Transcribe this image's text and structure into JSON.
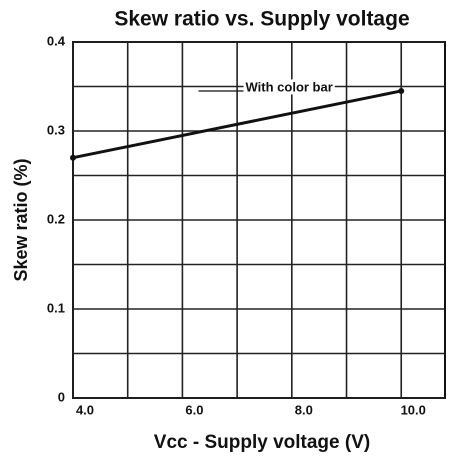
{
  "chart_data": {
    "type": "line",
    "title": "Skew ratio vs. Supply voltage",
    "xlabel": "Vcc - Supply voltage (V)",
    "ylabel": "Skew ratio (%)",
    "x": [
      4,
      10
    ],
    "series": [
      {
        "name": "With color bar",
        "color": "#111111",
        "values": [
          0.27,
          0.345
        ]
      }
    ],
    "xlim": [
      4,
      10.8
    ],
    "xticks": [
      {
        "value": 4,
        "label": "4.0"
      },
      {
        "value": 6,
        "label": "6.0"
      },
      {
        "value": 8,
        "label": "8.0"
      },
      {
        "value": 10,
        "label": "10.0"
      }
    ],
    "xgrid": [
      5,
      7,
      9
    ],
    "ylim": [
      0,
      0.4
    ],
    "yticks": [
      0,
      0.1,
      0.2,
      0.3,
      0.4
    ],
    "ygrid": [
      0.05,
      0.15,
      0.25,
      0.35
    ],
    "grid": true
  }
}
